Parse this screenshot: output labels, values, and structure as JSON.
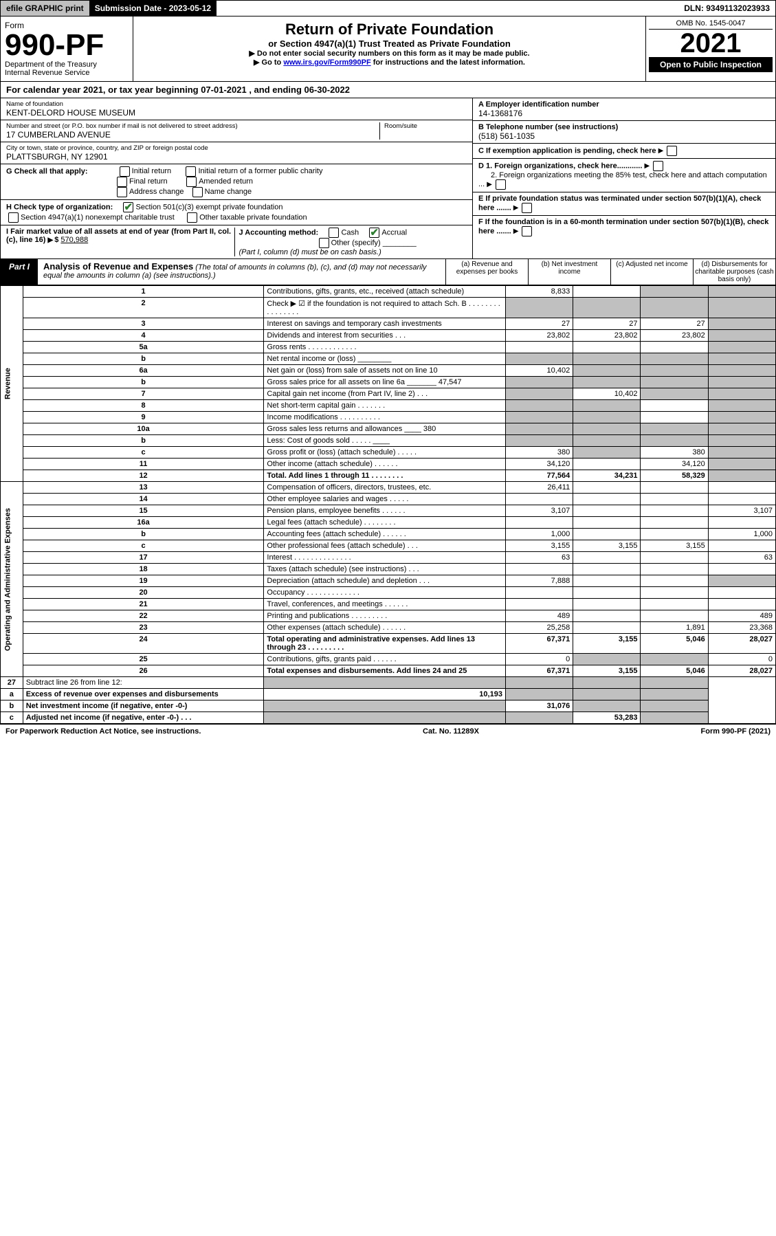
{
  "topbar": {
    "efile": "efile GRAPHIC print",
    "subdate_label": "Submission Date - 2023-05-12",
    "dln": "DLN: 93491132023933"
  },
  "header": {
    "form_label": "Form",
    "form_no": "990-PF",
    "dept": "Department of the Treasury",
    "irs": "Internal Revenue Service",
    "title": "Return of Private Foundation",
    "subtitle": "or Section 4947(a)(1) Trust Treated as Private Foundation",
    "hint1": "▶ Do not enter social security numbers on this form as it may be made public.",
    "hint2_pre": "▶ Go to ",
    "hint2_link": "www.irs.gov/Form990PF",
    "hint2_post": " for instructions and the latest information.",
    "omb": "OMB No. 1545-0047",
    "year": "2021",
    "open": "Open to Public Inspection"
  },
  "calendar": {
    "text": "For calendar year 2021, or tax year beginning 07-01-2021                     , and ending 06-30-2022"
  },
  "meta": {
    "name_label": "Name of foundation",
    "name": "KENT-DELORD HOUSE MUSEUM",
    "addr_label": "Number and street (or P.O. box number if mail is not delivered to street address)",
    "room_label": "Room/suite",
    "addr": "17 CUMBERLAND AVENUE",
    "city_label": "City or town, state or province, country, and ZIP or foreign postal code",
    "city": "PLATTSBURGH, NY  12901",
    "ein_label": "A Employer identification number",
    "ein": "14-1368176",
    "tel_label": "B Telephone number (see instructions)",
    "tel": "(518) 561-1035",
    "c_label": "C If exemption application is pending, check here",
    "d1": "D 1. Foreign organizations, check here............",
    "d2": "2. Foreign organizations meeting the 85% test, check here and attach computation ...",
    "e_label": "E  If private foundation status was terminated under section 507(b)(1)(A), check here .......",
    "f_label": "F  If the foundation is in a 60-month termination under section 507(b)(1)(B), check here .......",
    "g_label": "G Check all that apply:",
    "g_opts": [
      "Initial return",
      "Final return",
      "Address change",
      "Initial return of a former public charity",
      "Amended return",
      "Name change"
    ],
    "h_label": "H Check type of organization:",
    "h_opt1": "Section 501(c)(3) exempt private foundation",
    "h_opt2": "Section 4947(a)(1) nonexempt charitable trust",
    "h_opt3": "Other taxable private foundation",
    "i_label": "I Fair market value of all assets at end of year (from Part II, col. (c), line 16)",
    "i_val": "570,988",
    "j_label": "J Accounting method:",
    "j_opts": [
      "Cash",
      "Accrual",
      "Other (specify)"
    ],
    "j_note": "(Part I, column (d) must be on cash basis.)"
  },
  "part1": {
    "tag": "Part I",
    "title": "Analysis of Revenue and Expenses",
    "note": "(The total of amounts in columns (b), (c), and (d) may not necessarily equal the amounts in column (a) (see instructions).)",
    "col_a": "(a)  Revenue and expenses per books",
    "col_b": "(b)  Net investment income",
    "col_c": "(c)  Adjusted net income",
    "col_d": "(d)  Disbursements for charitable purposes (cash basis only)"
  },
  "side": {
    "rev": "Revenue",
    "exp": "Operating and Administrative Expenses"
  },
  "rows": [
    {
      "n": "1",
      "d": "Contributions, gifts, grants, etc., received (attach schedule)",
      "a": "8,833",
      "b": "",
      "c": "",
      "dd": "",
      "bg": "",
      "cg": "g",
      "dg": "g"
    },
    {
      "n": "2",
      "d": "Check ▶ ☑ if the foundation is not required to attach Sch. B   .  .  .  .  .  .  .  .  .  .  .  .  .  .  .  .",
      "a": "",
      "b": "",
      "c": "",
      "dd": "",
      "ag": "g",
      "bg": "g",
      "cg": "g",
      "dg": "g"
    },
    {
      "n": "3",
      "d": "Interest on savings and temporary cash investments",
      "a": "27",
      "b": "27",
      "c": "27",
      "dd": "",
      "dg": "g"
    },
    {
      "n": "4",
      "d": "Dividends and interest from securities   .  .  .",
      "a": "23,802",
      "b": "23,802",
      "c": "23,802",
      "dd": "",
      "dg": "g"
    },
    {
      "n": "5a",
      "d": "Gross rents   .  .  .  .  .  .  .  .  .  .  .  .",
      "a": "",
      "b": "",
      "c": "",
      "dd": "",
      "dg": "g"
    },
    {
      "n": "b",
      "d": "Net rental income or (loss)  ________",
      "a": "",
      "b": "",
      "c": "",
      "dd": "",
      "ag": "g",
      "bg": "g",
      "cg": "g",
      "dg": "g"
    },
    {
      "n": "6a",
      "d": "Net gain or (loss) from sale of assets not on line 10",
      "a": "10,402",
      "b": "",
      "c": "",
      "dd": "",
      "bg": "g",
      "cg": "g",
      "dg": "g"
    },
    {
      "n": "b",
      "d": "Gross sales price for all assets on line 6a _______ 47,547",
      "a": "",
      "b": "",
      "c": "",
      "dd": "",
      "ag": "g",
      "bg": "g",
      "cg": "g",
      "dg": "g"
    },
    {
      "n": "7",
      "d": "Capital gain net income (from Part IV, line 2)   .  .  . ",
      "a": "",
      "b": "10,402",
      "c": "",
      "dd": "",
      "ag": "g",
      "cg": "g",
      "dg": "g"
    },
    {
      "n": "8",
      "d": "Net short-term capital gain   .  .  .  .  .  .  .",
      "a": "",
      "b": "",
      "c": "",
      "dd": "",
      "ag": "g",
      "bg": "g",
      "dg": "g"
    },
    {
      "n": "9",
      "d": "Income modifications  .  .  .  .  .  .  .  .  .  .",
      "a": "",
      "b": "",
      "c": "",
      "dd": "",
      "ag": "g",
      "bg": "g",
      "dg": "g"
    },
    {
      "n": "10a",
      "d": "Gross sales less returns and allowances   ____ 380",
      "a": "",
      "b": "",
      "c": "",
      "dd": "",
      "ag": "g",
      "bg": "g",
      "cg": "g",
      "dg": "g"
    },
    {
      "n": "b",
      "d": "Less: Cost of goods sold   .  .  .  .  . ____",
      "a": "",
      "b": "",
      "c": "",
      "dd": "",
      "ag": "g",
      "bg": "g",
      "cg": "g",
      "dg": "g"
    },
    {
      "n": "c",
      "d": "Gross profit or (loss) (attach schedule)   .  .  .  .  .",
      "a": "380",
      "b": "",
      "c": "380",
      "dd": "",
      "bg": "g",
      "dg": "g"
    },
    {
      "n": "11",
      "d": "Other income (attach schedule)   .  .  .  .  .  .",
      "a": "34,120",
      "b": "",
      "c": "34,120",
      "dd": "",
      "dg": "g"
    },
    {
      "n": "12",
      "d": "Total. Add lines 1 through 11   .  .  .  .  .  .  .  .",
      "a": "77,564",
      "b": "34,231",
      "c": "58,329",
      "dd": "",
      "bold": true,
      "dg": "g"
    }
  ],
  "exp_rows": [
    {
      "n": "13",
      "d": "Compensation of officers, directors, trustees, etc.",
      "a": "26,411",
      "b": "",
      "c": "",
      "dd": ""
    },
    {
      "n": "14",
      "d": "Other employee salaries and wages   .  .  .  .  .",
      "a": "",
      "b": "",
      "c": "",
      "dd": ""
    },
    {
      "n": "15",
      "d": "Pension plans, employee benefits  .  .  .  .  .  .",
      "a": "3,107",
      "b": "",
      "c": "",
      "dd": "3,107"
    },
    {
      "n": "16a",
      "d": "Legal fees (attach schedule)  .  .  .  .  .  .  .  .",
      "a": "",
      "b": "",
      "c": "",
      "dd": ""
    },
    {
      "n": "b",
      "d": "Accounting fees (attach schedule)  .  .  .  .  .  .",
      "a": "1,000",
      "b": "",
      "c": "",
      "dd": "1,000"
    },
    {
      "n": "c",
      "d": "Other professional fees (attach schedule)   .  .  .",
      "a": "3,155",
      "b": "3,155",
      "c": "3,155",
      "dd": ""
    },
    {
      "n": "17",
      "d": "Interest  .  .  .  .  .  .  .  .  .  .  .  .  .  .",
      "a": "63",
      "b": "",
      "c": "",
      "dd": "63"
    },
    {
      "n": "18",
      "d": "Taxes (attach schedule) (see instructions)   .  .  .",
      "a": "",
      "b": "",
      "c": "",
      "dd": ""
    },
    {
      "n": "19",
      "d": "Depreciation (attach schedule) and depletion   .  .  .",
      "a": "7,888",
      "b": "",
      "c": "",
      "dd": "",
      "dg": "g"
    },
    {
      "n": "20",
      "d": "Occupancy  .  .  .  .  .  .  .  .  .  .  .  .  .",
      "a": "",
      "b": "",
      "c": "",
      "dd": ""
    },
    {
      "n": "21",
      "d": "Travel, conferences, and meetings  .  .  .  .  .  .",
      "a": "",
      "b": "",
      "c": "",
      "dd": ""
    },
    {
      "n": "22",
      "d": "Printing and publications  .  .  .  .  .  .  .  .  .",
      "a": "489",
      "b": "",
      "c": "",
      "dd": "489"
    },
    {
      "n": "23",
      "d": "Other expenses (attach schedule)  .  .  .  .  .  .",
      "a": "25,258",
      "b": "",
      "c": "1,891",
      "dd": "23,368"
    },
    {
      "n": "24",
      "d": "Total operating and administrative expenses. Add lines 13 through 23  .  .  .  .  .  .  .  .  .",
      "a": "67,371",
      "b": "3,155",
      "c": "5,046",
      "dd": "28,027",
      "bold": true
    },
    {
      "n": "25",
      "d": "Contributions, gifts, grants paid   .  .  .  .  .  .",
      "a": "0",
      "b": "",
      "c": "",
      "dd": "0",
      "bg": "g",
      "cg": "g"
    },
    {
      "n": "26",
      "d": "Total expenses and disbursements. Add lines 24 and 25",
      "a": "67,371",
      "b": "3,155",
      "c": "5,046",
      "dd": "28,027",
      "bold": true
    }
  ],
  "bottom_rows": [
    {
      "n": "27",
      "d": "Subtract line 26 from line 12:",
      "a": "",
      "b": "",
      "c": "",
      "dd": "",
      "ag": "g",
      "bg": "g",
      "cg": "g",
      "dg": "g"
    },
    {
      "n": "a",
      "d": "Excess of revenue over expenses and disbursements",
      "a": "10,193",
      "b": "",
      "c": "",
      "dd": "",
      "bold": true,
      "bg": "g",
      "cg": "g",
      "dg": "g"
    },
    {
      "n": "b",
      "d": "Net investment income (if negative, enter -0-)",
      "a": "",
      "b": "31,076",
      "c": "",
      "dd": "",
      "bold": true,
      "ag": "g",
      "cg": "g",
      "dg": "g"
    },
    {
      "n": "c",
      "d": "Adjusted net income (if negative, enter -0-)   .  .  .",
      "a": "",
      "b": "",
      "c": "53,283",
      "dd": "",
      "bold": true,
      "ag": "g",
      "bg": "g",
      "dg": "g"
    }
  ],
  "footer": {
    "left": "For Paperwork Reduction Act Notice, see instructions.",
    "mid": "Cat. No. 11289X",
    "right": "Form 990-PF (2021)"
  },
  "colors": {
    "grey": "#c0c0c0",
    "black": "#000000",
    "link": "#0000cc",
    "check_green": "#2e7d32"
  }
}
